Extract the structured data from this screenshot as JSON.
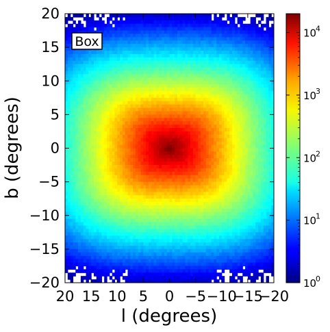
{
  "chart_data": {
    "type": "heatmap",
    "title": "",
    "xlabel": "l (degrees)",
    "ylabel": "b (degrees)",
    "xlim": [
      20,
      -20
    ],
    "ylim": [
      -20,
      20
    ],
    "x_inverted": true,
    "xticks": [
      "20",
      "15",
      "10",
      "5",
      "0",
      "−5",
      "−10",
      "−15",
      "−20"
    ],
    "xtick_values": [
      20,
      15,
      10,
      5,
      0,
      -5,
      -10,
      -15,
      -20
    ],
    "yticks": [
      "−20",
      "−15",
      "−10",
      "−5",
      "0",
      "5",
      "10",
      "15",
      "20"
    ],
    "ytick_values": [
      -20,
      -15,
      -10,
      -5,
      0,
      5,
      10,
      15,
      20
    ],
    "bins": {
      "nx": 80,
      "ny": 80
    },
    "annotation": "Box",
    "annotation_placement": "top-left",
    "density_model": {
      "description": "counts per bin, peaked at the Galactic centre, boxy/peanut shaped",
      "peak_count": 20000,
      "peak_location": [
        0,
        0
      ],
      "count_at_b_pm5": 1000,
      "count_at_b_pm10": 100,
      "count_at_b_pm15": 10,
      "count_at_b_pm20": 1,
      "sparse_regions": "empty bins scattered near |b| = 20"
    },
    "colorbar": {
      "scale": "log",
      "min": 1,
      "max": 20000,
      "colormap": "jet",
      "tick_values": [
        1,
        10,
        100,
        1000,
        10000
      ],
      "tick_labels": [
        {
          "base": "10",
          "exp": "0"
        },
        {
          "base": "10",
          "exp": "1"
        },
        {
          "base": "10",
          "exp": "2"
        },
        {
          "base": "10",
          "exp": "3"
        },
        {
          "base": "10",
          "exp": "4"
        }
      ]
    }
  }
}
